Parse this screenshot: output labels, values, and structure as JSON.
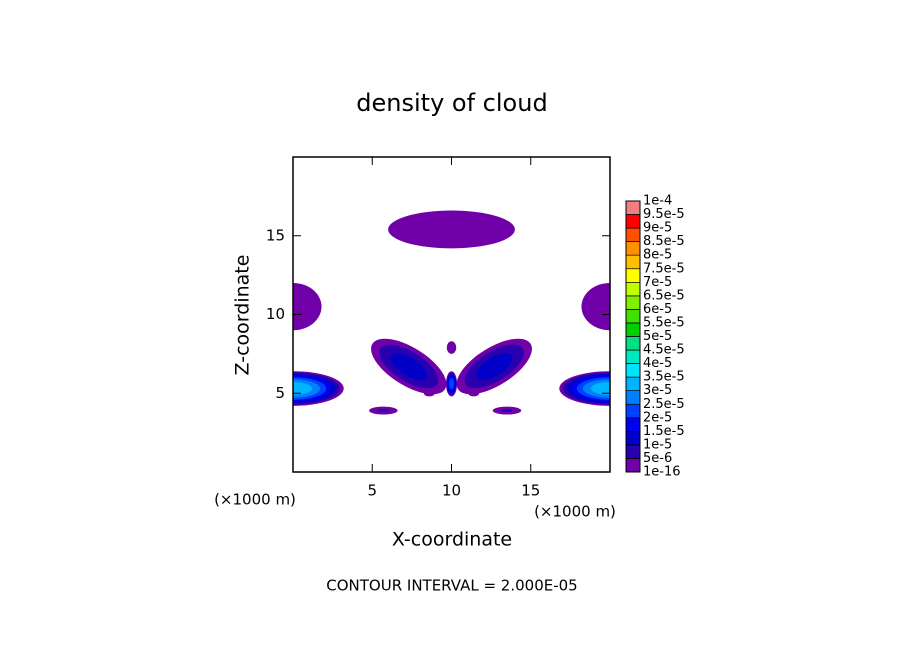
{
  "chart_data": {
    "type": "contour",
    "title": "density of cloud",
    "x_label": "X-coordinate",
    "y_label": "Z-coordinate",
    "x_unit": "(×1000 m)",
    "y_unit": "(×1000 m)",
    "note": "CONTOUR INTERVAL = 2.000E-05",
    "xlim": [
      0,
      20
    ],
    "ylim": [
      0,
      20
    ],
    "xticks": [
      5,
      10,
      15
    ],
    "yticks": [
      5,
      10,
      15
    ],
    "levels": [
      {
        "value": 1e-16,
        "label": "1e-16"
      },
      {
        "value": 5e-06,
        "label": "5e-6"
      },
      {
        "value": 1e-05,
        "label": "1e-5"
      },
      {
        "value": 1.5e-05,
        "label": "1.5e-5"
      },
      {
        "value": 2e-05,
        "label": "2e-5"
      },
      {
        "value": 2.5e-05,
        "label": "2.5e-5"
      },
      {
        "value": 3e-05,
        "label": "3e-5"
      },
      {
        "value": 3.5e-05,
        "label": "3.5e-5"
      },
      {
        "value": 4e-05,
        "label": "4e-5"
      },
      {
        "value": 4.5e-05,
        "label": "4.5e-5"
      },
      {
        "value": 5e-05,
        "label": "5e-5"
      },
      {
        "value": 5.5e-05,
        "label": "5.5e-5"
      },
      {
        "value": 6e-05,
        "label": "6e-5"
      },
      {
        "value": 6.5e-05,
        "label": "6.5e-5"
      },
      {
        "value": 7e-05,
        "label": "7e-5"
      },
      {
        "value": 7.5e-05,
        "label": "7.5e-5"
      },
      {
        "value": 8e-05,
        "label": "8e-5"
      },
      {
        "value": 8.5e-05,
        "label": "8.5e-5"
      },
      {
        "value": 9e-05,
        "label": "9e-5"
      },
      {
        "value": 9.5e-05,
        "label": "9.5e-5"
      },
      {
        "value": 0.0001,
        "label": "1e-4"
      }
    ],
    "colors": [
      "#7000a8",
      "#2800b0",
      "#0000c8",
      "#0000f0",
      "#0040ff",
      "#0080ff",
      "#00b4ff",
      "#00e4ff",
      "#00e8c0",
      "#00e080",
      "#00d000",
      "#40e000",
      "#80f000",
      "#c0ff00",
      "#ffff00",
      "#ffc000",
      "#ff9000",
      "#ff5000",
      "#ff0000",
      "#f08080"
    ],
    "blobs": [
      {
        "x": 10,
        "z": 15.4,
        "rx": 4.0,
        "rz": 1.2,
        "angle": 0,
        "value": 4e-06
      },
      {
        "x": 0,
        "z": 5.3,
        "rx": 3.2,
        "rz": 1.1,
        "angle": 0,
        "value": 3.5e-05
      },
      {
        "x": 20,
        "z": 5.3,
        "rx": 3.2,
        "rz": 1.1,
        "angle": 0,
        "value": 3.5e-05
      },
      {
        "x": 0,
        "z": 10.5,
        "rx": 1.8,
        "rz": 1.5,
        "angle": 0,
        "value": 4e-06
      },
      {
        "x": 20,
        "z": 10.5,
        "rx": 1.8,
        "rz": 1.5,
        "angle": 0,
        "value": 4e-06
      },
      {
        "x": 7.3,
        "z": 6.7,
        "rx": 2.7,
        "rz": 1.2,
        "angle": 32,
        "value": 1.3e-05
      },
      {
        "x": 12.7,
        "z": 6.7,
        "rx": 2.7,
        "rz": 1.2,
        "angle": -32,
        "value": 1.3e-05
      },
      {
        "x": 10,
        "z": 5.6,
        "rx": 0.35,
        "rz": 0.8,
        "angle": 0,
        "value": 2.5e-05
      },
      {
        "x": 10,
        "z": 7.9,
        "rx": 0.3,
        "rz": 0.4,
        "angle": 0,
        "value": 3e-06
      },
      {
        "x": 5.7,
        "z": 3.9,
        "rx": 0.9,
        "rz": 0.25,
        "angle": 0,
        "value": 6e-06
      },
      {
        "x": 13.5,
        "z": 3.9,
        "rx": 0.9,
        "rz": 0.25,
        "angle": 0,
        "value": 6e-06
      },
      {
        "x": 8.6,
        "z": 5.0,
        "rx": 0.35,
        "rz": 0.2,
        "angle": 0,
        "value": 3e-06
      },
      {
        "x": 11.4,
        "z": 5.0,
        "rx": 0.35,
        "rz": 0.2,
        "angle": 0,
        "value": 3e-06
      }
    ]
  }
}
